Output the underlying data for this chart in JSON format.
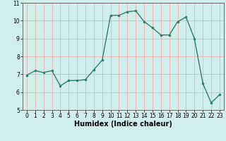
{
  "x": [
    0,
    1,
    2,
    3,
    4,
    5,
    6,
    7,
    8,
    9,
    10,
    11,
    12,
    13,
    14,
    15,
    16,
    17,
    18,
    19,
    20,
    21,
    22,
    23
  ],
  "y": [
    6.95,
    7.2,
    7.1,
    7.2,
    6.35,
    6.65,
    6.65,
    6.7,
    7.25,
    7.8,
    10.3,
    10.3,
    10.5,
    10.55,
    9.95,
    9.6,
    9.2,
    9.2,
    9.95,
    10.2,
    9.0,
    6.5,
    5.4,
    5.85
  ],
  "line_color": "#2d7d6e",
  "marker": "o",
  "markersize": 2.0,
  "linewidth": 1.0,
  "xlabel": "Humidex (Indice chaleur)",
  "xlabel_fontsize": 7.0,
  "xlabel_fontweight": "bold",
  "ylim": [
    5,
    11
  ],
  "xlim": [
    -0.5,
    23.5
  ],
  "yticks": [
    5,
    6,
    7,
    8,
    9,
    10,
    11
  ],
  "xticks": [
    0,
    1,
    2,
    3,
    4,
    5,
    6,
    7,
    8,
    9,
    10,
    11,
    12,
    13,
    14,
    15,
    16,
    17,
    18,
    19,
    20,
    21,
    22,
    23
  ],
  "background_color": "#d0eeec",
  "grid_color": "#f0b0b0",
  "tick_fontsize": 5.5,
  "spine_color": "#555555"
}
